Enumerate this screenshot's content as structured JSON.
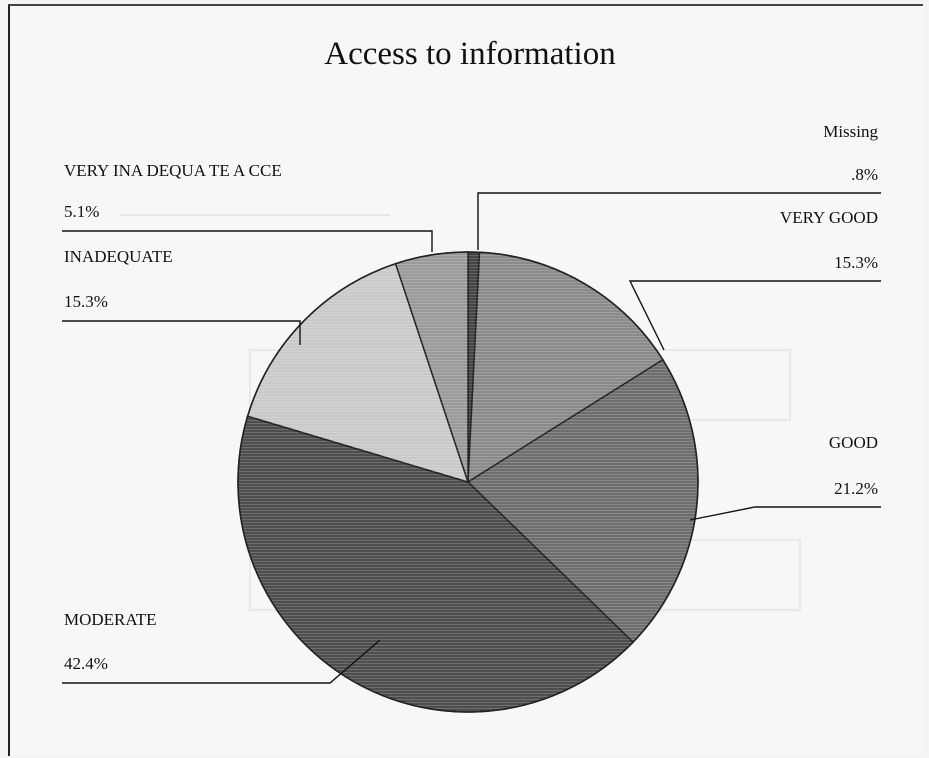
{
  "chart_data": {
    "type": "pie",
    "title": "Access to information",
    "slices": [
      {
        "label": "Missing",
        "value": 0.8,
        "value_label": ".8%",
        "color": "#444444"
      },
      {
        "label": "VERY GOOD",
        "value": 15.3,
        "value_label": "15.3%",
        "color": "#8a8a8a"
      },
      {
        "label": "GOOD",
        "value": 21.2,
        "value_label": "21.2%",
        "color": "#6e6e6e"
      },
      {
        "label": "MODERATE",
        "value": 42.4,
        "value_label": "42.4%",
        "color": "#4e4e4e"
      },
      {
        "label": "INADEQUATE",
        "value": 15.3,
        "value_label": "15.3%",
        "color": "#c9c9c9"
      },
      {
        "label": "VERY INA DEQUA TE A CCE",
        "value": 5.1,
        "value_label": "5.1%",
        "color": "#9a9a9a"
      }
    ]
  }
}
